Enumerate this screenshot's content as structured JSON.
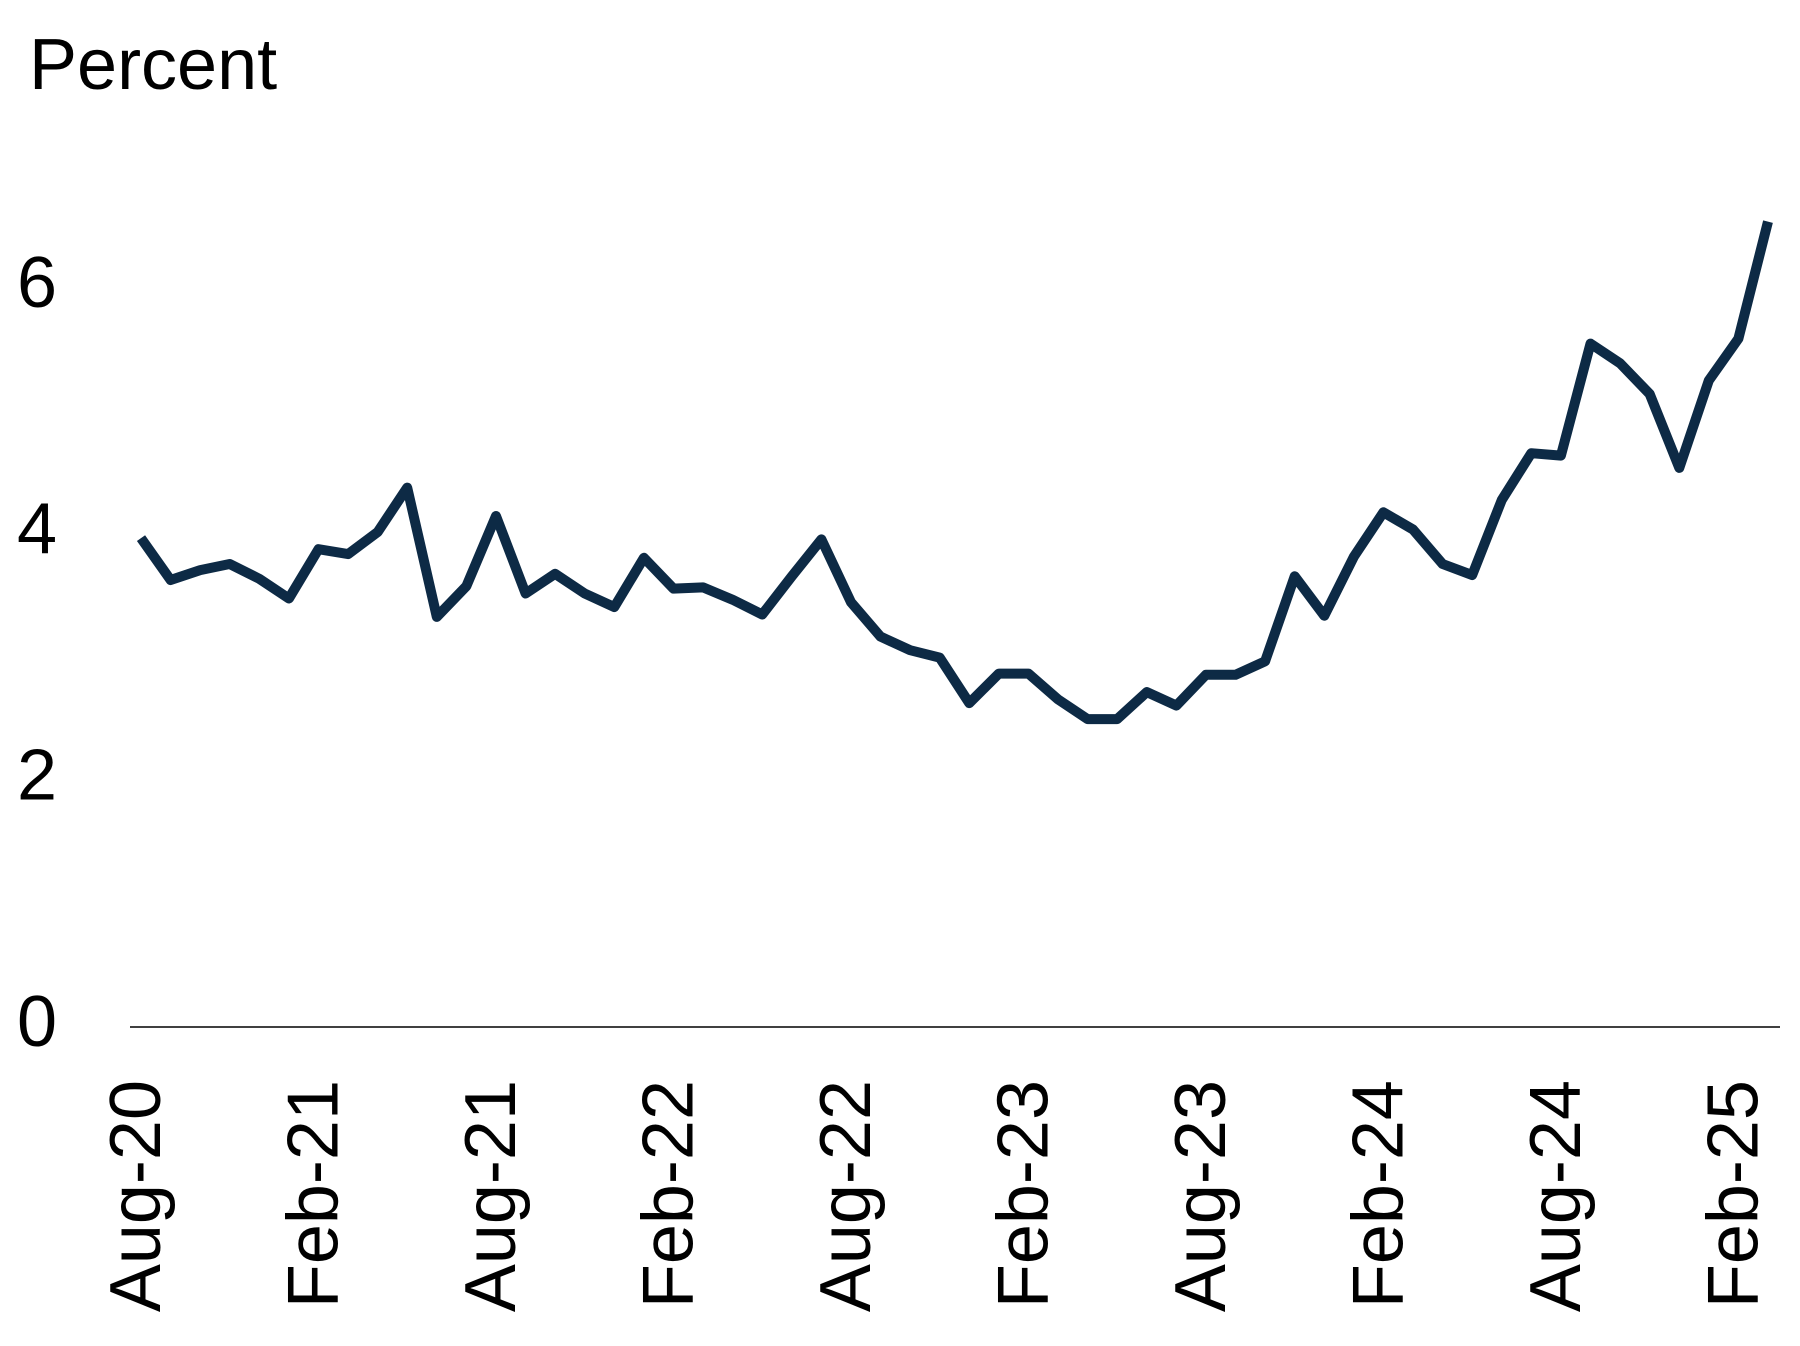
{
  "chart_data": {
    "type": "line",
    "y_axis_label": "Percent",
    "categories": [
      "Aug-20",
      null,
      null,
      null,
      null,
      null,
      "Feb-21",
      null,
      null,
      null,
      null,
      null,
      "Aug-21",
      null,
      null,
      null,
      null,
      null,
      "Feb-22",
      null,
      null,
      null,
      null,
      null,
      "Aug-22",
      null,
      null,
      null,
      null,
      null,
      "Feb-23",
      null,
      null,
      null,
      null,
      null,
      "Aug-23",
      null,
      null,
      null,
      null,
      null,
      "Feb-24",
      null,
      null,
      null,
      null,
      null,
      "Aug-24",
      null,
      null,
      null,
      null,
      null,
      "Feb-25",
      null
    ],
    "series": [
      {
        "color": "#0d2a45",
        "values": [
          3.97,
          3.63,
          3.71,
          3.76,
          3.64,
          3.48,
          3.88,
          3.84,
          4.02,
          4.38,
          3.33,
          3.58,
          4.15,
          3.52,
          3.68,
          3.52,
          3.41,
          3.81,
          3.56,
          3.57,
          3.47,
          3.35,
          3.66,
          3.96,
          3.45,
          3.17,
          3.06,
          3.0,
          2.63,
          2.87,
          2.87,
          2.66,
          2.5,
          2.5,
          2.72,
          2.61,
          2.86,
          2.86,
          2.97,
          3.66,
          3.34,
          3.82,
          4.18,
          4.04,
          3.76,
          3.67,
          4.28,
          4.66,
          4.64,
          5.55,
          5.39,
          5.14,
          4.54,
          5.25,
          5.59,
          6.54
        ]
      }
    ],
    "ylim": [
      0,
      7
    ],
    "yticks": [
      0,
      2,
      4,
      6
    ],
    "grid": false
  }
}
